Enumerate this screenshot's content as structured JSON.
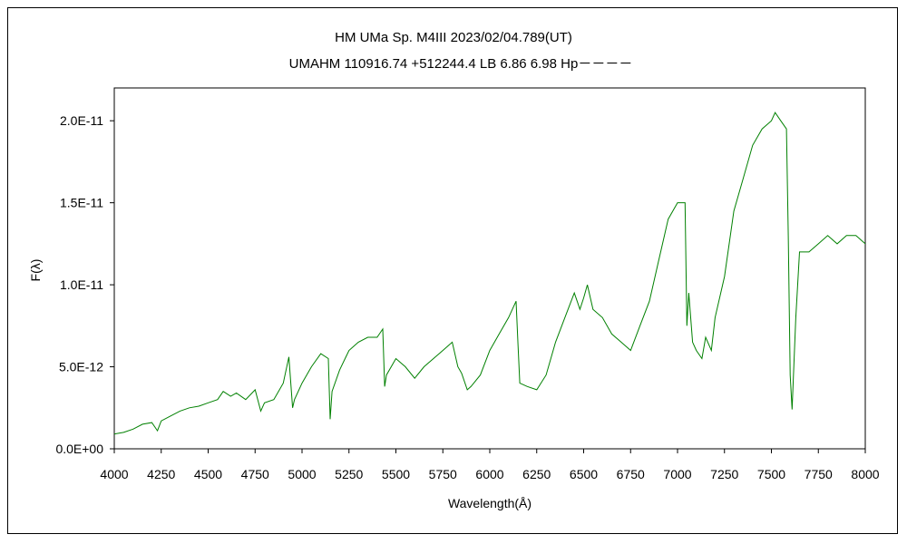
{
  "chart_data": {
    "type": "line",
    "title": "HM UMa    Sp. M4III    2023/02/04.789(UT)",
    "subtitle": "UMAHM 110916.74 +512244.4 LB 6.86 6.98 Hp－－－－",
    "xlabel": "Wavelength(Å)",
    "ylabel": "F(λ)",
    "xlim": [
      4000,
      8000
    ],
    "ylim": [
      0,
      2.2e-11
    ],
    "x_ticks": [
      4000,
      4250,
      4500,
      4750,
      5000,
      5250,
      5500,
      5750,
      6000,
      6250,
      6500,
      6750,
      7000,
      7250,
      7500,
      7750,
      8000
    ],
    "x_tick_labels": [
      "4000",
      "4250",
      "4500",
      "4750",
      "5000",
      "5250",
      "5500",
      "5750",
      "6000",
      "6250",
      "6500",
      "6750",
      "7000",
      "7250",
      "7500",
      "7750",
      "8000"
    ],
    "y_ticks": [
      0,
      5e-12,
      1e-11,
      1.5e-11,
      2e-11
    ],
    "y_tick_labels": [
      "0.0E+00",
      "5.0E-12",
      "1.0E-11",
      "1.5E-11",
      "2.0E-11"
    ],
    "grid": false,
    "series_color": "#008000",
    "series": [
      {
        "x": [
          4000,
          4050,
          4100,
          4150,
          4200,
          4230,
          4250,
          4300,
          4350,
          4400,
          4450,
          4500,
          4550,
          4580,
          4620,
          4650,
          4700,
          4750,
          4780,
          4800,
          4850,
          4900,
          4930,
          4950,
          4960,
          5000,
          5050,
          5100,
          5140,
          5150,
          5160,
          5200,
          5250,
          5300,
          5350,
          5400,
          5430,
          5440,
          5450,
          5500,
          5550,
          5600,
          5650,
          5700,
          5750,
          5800,
          5830,
          5850,
          5880,
          5900,
          5950,
          6000,
          6050,
          6100,
          6140,
          6150,
          6160,
          6200,
          6250,
          6300,
          6350,
          6400,
          6450,
          6480,
          6500,
          6520,
          6550,
          6600,
          6650,
          6700,
          6750,
          6800,
          6850,
          6900,
          6950,
          7000,
          7040,
          7050,
          7060,
          7080,
          7100,
          7130,
          7150,
          7180,
          7200,
          7250,
          7300,
          7350,
          7400,
          7450,
          7500,
          7520,
          7550,
          7580,
          7590,
          7600,
          7610,
          7630,
          7650,
          7700,
          7750,
          7800,
          7850,
          7900,
          7950,
          8000
        ],
        "y": [
          9e-13,
          1e-12,
          1.2e-12,
          1.5e-12,
          1.6e-12,
          1.1e-12,
          1.7e-12,
          2e-12,
          2.3e-12,
          2.5e-12,
          2.6e-12,
          2.8e-12,
          3e-12,
          3.5e-12,
          3.2e-12,
          3.4e-12,
          3e-12,
          3.6e-12,
          2.3e-12,
          2.8e-12,
          3e-12,
          4e-12,
          5.6e-12,
          2.5e-12,
          3e-12,
          4e-12,
          5e-12,
          5.8e-12,
          5.5e-12,
          1.8e-12,
          3.5e-12,
          4.8e-12,
          6e-12,
          6.5e-12,
          6.8e-12,
          6.8e-12,
          7.3e-12,
          3.8e-12,
          4.5e-12,
          5.5e-12,
          5e-12,
          4.3e-12,
          5e-12,
          5.5e-12,
          6e-12,
          6.5e-12,
          5e-12,
          4.6e-12,
          3.6e-12,
          3.8e-12,
          4.5e-12,
          6e-12,
          7e-12,
          8e-12,
          9e-12,
          6.5e-12,
          4e-12,
          3.8e-12,
          3.6e-12,
          4.5e-12,
          6.5e-12,
          8e-12,
          9.5e-12,
          8.5e-12,
          9.2e-12,
          1e-11,
          8.5e-12,
          8e-12,
          7e-12,
          6.5e-12,
          6e-12,
          7.5e-12,
          9e-12,
          1.15e-11,
          1.4e-11,
          1.5e-11,
          1.5e-11,
          7.5e-12,
          9.5e-12,
          6.5e-12,
          6e-12,
          5.5e-12,
          6.8e-12,
          6e-12,
          8e-12,
          1.05e-11,
          1.45e-11,
          1.65e-11,
          1.85e-11,
          1.95e-11,
          2e-11,
          2.05e-11,
          2e-11,
          1.95e-11,
          1.3e-11,
          4.5e-12,
          2.4e-12,
          8e-12,
          1.2e-11,
          1.2e-11,
          1.25e-11,
          1.3e-11,
          1.25e-11,
          1.3e-11,
          1.3e-11,
          1.25e-11
        ]
      }
    ]
  }
}
